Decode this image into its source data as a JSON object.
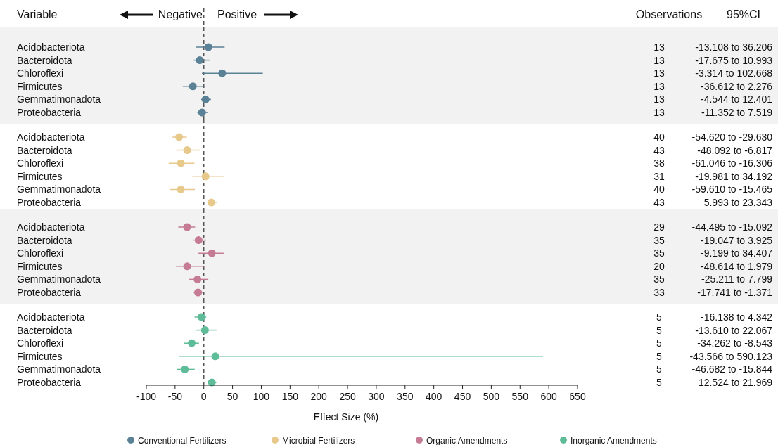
{
  "chart_data": [
    {
      "type": "scatter",
      "orientation": "horizontal",
      "xlim": [
        -100,
        650
      ],
      "tick_labels": "y",
      "categories": [
        "Acidobacteriota",
        "Bacteroidota",
        "Chloroflexi",
        "Firmicutes",
        "Gemmatimonadota",
        "Proteobacteria"
      ],
      "series": [
        {
          "name": "Conventional Fertilizers",
          "color": "#5b8196",
          "values": [
            8,
            -7,
            32,
            -19,
            3,
            -3
          ],
          "errors": [
            [
              -13.108,
              36.206
            ],
            [
              -17.675,
              10.993
            ],
            [
              -3.314,
              102.668
            ],
            [
              -36.612,
              2.276
            ],
            [
              -4.544,
              12.401
            ],
            [
              -11.352,
              7.519
            ]
          ]
        }
      ],
      "marker": "circle",
      "legend": "bottom",
      "ref_lines": [
        {
          "axis": "x",
          "value": 0,
          "line_style": "dashed",
          "color": "#555555"
        }
      ],
      "annotations": [
        "Variable",
        "Negative",
        "Positive",
        "Observations",
        "95%CI",
        "13",
        "13",
        "13",
        "13",
        "13",
        "13",
        "-13.108 to 36.206",
        "-17.675 to 10.993",
        "-3.314 to 102.668",
        "-36.612 to 2.276",
        "-4.544 to 12.401",
        "-11.352 to 7.519"
      ]
    },
    {
      "type": "scatter",
      "orientation": "horizontal",
      "xlim": [
        -100,
        650
      ],
      "tick_labels": "y",
      "categories": [
        "Acidobacteriota",
        "Bacteroidota",
        "Chloroflexi",
        "Firmicutes",
        "Gemmatimonadota",
        "Proteobacteria"
      ],
      "series": [
        {
          "name": "Microbial Fertilizers",
          "color": "#e8c98c",
          "values": [
            -43,
            -29,
            -40,
            3,
            -40,
            13
          ],
          "errors": [
            [
              -54.62,
              -29.63
            ],
            [
              -48.092,
              -6.817
            ],
            [
              -61.046,
              -16.306
            ],
            [
              -19.981,
              34.192
            ],
            [
              -59.61,
              -15.465
            ],
            [
              5.993,
              23.343
            ]
          ]
        }
      ],
      "marker": "circle",
      "legend": "bottom",
      "ref_lines": [
        {
          "axis": "x",
          "value": 0,
          "line_style": "dashed",
          "color": "#555555"
        }
      ],
      "annotations": [
        "40",
        "43",
        "38",
        "31",
        "40",
        "43",
        "-54.620 to -29.630",
        "-48.092 to -6.817",
        "-61.046 to -16.306",
        "-19.981 to 34.192",
        "-59.610 to -15.465",
        "5.993 to 23.343"
      ]
    },
    {
      "type": "scatter",
      "orientation": "horizontal",
      "xlim": [
        -100,
        650
      ],
      "tick_labels": "y",
      "categories": [
        "Acidobacteriota",
        "Bacteroidota",
        "Chloroflexi",
        "Firmicutes",
        "Gemmatimonadota",
        "Proteobacteria"
      ],
      "series": [
        {
          "name": "Organic Amendments",
          "color": "#c47b93",
          "values": [
            -29,
            -9,
            14,
            -29,
            -11,
            -10
          ],
          "errors": [
            [
              -44.495,
              -15.092
            ],
            [
              -19.047,
              3.925
            ],
            [
              -9.199,
              34.407
            ],
            [
              -48.614,
              1.979
            ],
            [
              -25.211,
              7.799
            ],
            [
              -17.741,
              -1.371
            ]
          ]
        }
      ],
      "marker": "circle",
      "legend": "bottom",
      "ref_lines": [
        {
          "axis": "x",
          "value": 0,
          "line_style": "dashed",
          "color": "#555555"
        }
      ],
      "annotations": [
        "29",
        "35",
        "35",
        "20",
        "35",
        "33",
        "-44.495 to -15.092",
        "-19.047 to 3.925",
        "-9.199 to 34.407",
        "-48.614 to 1.979",
        "-25.211 to 7.799",
        "-17.741 to -1.371"
      ]
    },
    {
      "type": "scatter",
      "orientation": "horizontal",
      "xlim": [
        -100,
        650
      ],
      "xticks": [
        -100,
        -50,
        0,
        50,
        100,
        150,
        200,
        250,
        300,
        350,
        400,
        450,
        500,
        550,
        600,
        650
      ],
      "xlabel": "Effect Size (%)",
      "categories": [
        "Acidobacteriota",
        "Bacteroidota",
        "Chloroflexi",
        "Firmicutes",
        "Gemmatimonadota",
        "Proteobacteria"
      ],
      "series": [
        {
          "name": "Inorganic Amendments",
          "color": "#5fbc98",
          "values": [
            -4,
            2,
            -21,
            20,
            -33,
            14
          ],
          "errors": [
            [
              -16.138,
              4.342
            ],
            [
              -13.61,
              22.067
            ],
            [
              -34.262,
              -8.543
            ],
            [
              -43.566,
              590.123
            ],
            [
              -46.682,
              -15.844
            ],
            [
              12.524,
              21.969
            ]
          ]
        }
      ],
      "marker": "circle",
      "legend": "bottom",
      "ref_lines": [
        {
          "axis": "x",
          "value": 0,
          "line_style": "dashed",
          "color": "#555555"
        }
      ],
      "annotations": [
        "5",
        "5",
        "5",
        "5",
        "5",
        "5",
        "-16.138 to 4.342",
        "-13.610 to 22.067",
        "-34.262 to -8.543",
        "-43.566 to 590.123",
        "-46.682 to -15.844",
        "12.524 to 21.969"
      ]
    }
  ]
}
